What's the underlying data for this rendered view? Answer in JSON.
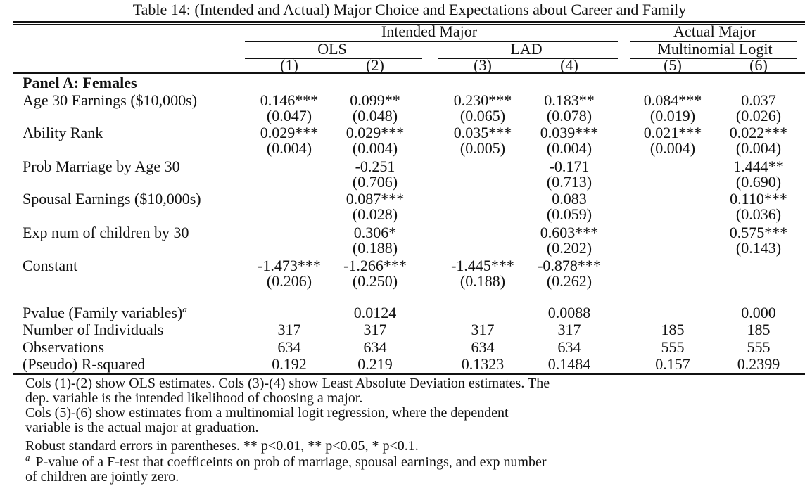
{
  "caption": "Table 14: (Intended and Actual) Major Choice and Expectations about Career and Family",
  "header": {
    "group_intended": "Intended Major",
    "group_actual": "Actual Major",
    "method_ols": "OLS",
    "method_lad": "LAD",
    "method_mlogit": "Multinomial Logit",
    "columns": [
      "(1)",
      "(2)",
      "(3)",
      "(4)",
      "(5)",
      "(6)"
    ]
  },
  "panel_title": "Panel A: Females",
  "rows": [
    {
      "label": "Age 30 Earnings ($10,000s)",
      "coef": [
        "0.146***",
        "0.099**",
        "0.230***",
        "0.183**",
        "0.084***",
        "0.037"
      ],
      "se": [
        "(0.047)",
        "(0.048)",
        "(0.065)",
        "(0.078)",
        "(0.019)",
        "(0.026)"
      ]
    },
    {
      "label": "Ability Rank",
      "coef": [
        "0.029***",
        "0.029***",
        "0.035***",
        "0.039***",
        "0.021***",
        "0.022***"
      ],
      "se": [
        "(0.004)",
        "(0.004)",
        "(0.005)",
        "(0.004)",
        "(0.004)",
        "(0.004)"
      ]
    },
    {
      "label": "Prob Marriage by Age 30",
      "coef": [
        "",
        "-0.251",
        "",
        "-0.171",
        "",
        "1.444**"
      ],
      "se": [
        "",
        "(0.706)",
        "",
        "(0.713)",
        "",
        "(0.690)"
      ]
    },
    {
      "label": "Spousal Earnings ($10,000s)",
      "coef": [
        "",
        "0.087***",
        "",
        "0.083",
        "",
        "0.110***"
      ],
      "se": [
        "",
        "(0.028)",
        "",
        "(0.059)",
        "",
        "(0.036)"
      ]
    },
    {
      "label": "Exp num of children by 30",
      "coef": [
        "",
        "0.306*",
        "",
        "0.603***",
        "",
        "0.575***"
      ],
      "se": [
        "",
        "(0.188)",
        "",
        "(0.202)",
        "",
        "(0.143)"
      ]
    },
    {
      "label": "Constant",
      "coef": [
        "-1.473***",
        "-1.266***",
        "-1.445***",
        "-0.878***",
        "",
        ""
      ],
      "se": [
        "(0.206)",
        "(0.250)",
        "(0.188)",
        "(0.262)",
        "",
        ""
      ]
    }
  ],
  "stats": [
    {
      "label": "Pvalue (Family variables)",
      "sup": "a",
      "values": [
        "",
        "0.0124",
        "",
        "0.0088",
        "",
        "0.000"
      ]
    },
    {
      "label": "Number of Individuals",
      "values": [
        "317",
        "317",
        "317",
        "317",
        "185",
        "185"
      ]
    },
    {
      "label": "Observations",
      "values": [
        "634",
        "634",
        "634",
        "634",
        "555",
        "555"
      ]
    },
    {
      "label": "(Pseudo) R-squared",
      "values": [
        "0.192",
        "0.219",
        "0.1323",
        "0.1484",
        "0.157",
        "0.2399"
      ]
    }
  ],
  "notes": [
    "Cols (1)-(2) show OLS estimates. Cols (3)-(4) show Least Absolute Deviation estimates. The",
    "dep. variable is the intended likelihood of choosing a major.",
    "Cols (5)-(6) show estimates from a multinomial logit regression, where the dependent",
    "variable is the actual major at graduation.",
    "Robust standard errors in parentheses. ** p<0.01, ** p<0.05, * p<0.1.",
    "P-value of a F-test that coefficeints on prob of marriage, spousal earnings, and exp number",
    "of children are jointly zero."
  ],
  "note_sup": "a"
}
